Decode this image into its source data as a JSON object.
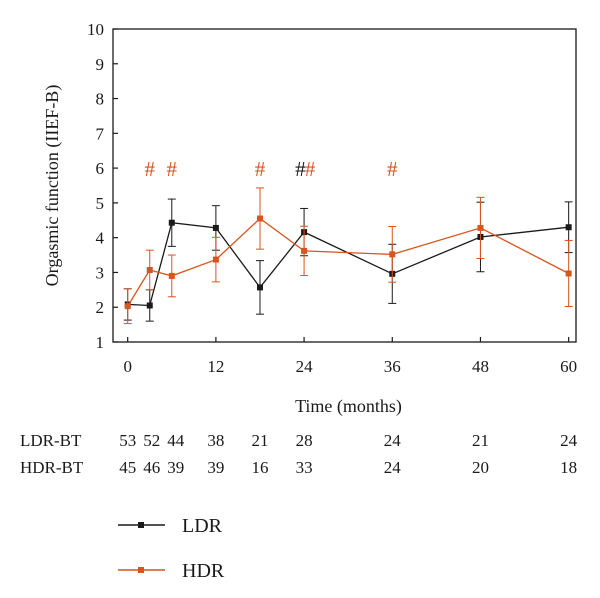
{
  "chart_data": {
    "type": "line",
    "xlabel": "Time (months)",
    "ylabel": "Orgasmic function (IIEF-B)",
    "xlim": [
      -2,
      61
    ],
    "ylim": [
      1,
      10
    ],
    "x_ticks": [
      0,
      12,
      24,
      36,
      48,
      60
    ],
    "y_ticks": [
      1,
      2,
      3,
      4,
      5,
      6,
      7,
      8,
      9,
      10
    ],
    "grid": false,
    "legend_position": "bottom-left",
    "series": [
      {
        "name": "LDR",
        "color": "#1a1a1a",
        "x": [
          0,
          3,
          6,
          12,
          18,
          24,
          36,
          48,
          60
        ],
        "y": [
          2.08,
          2.05,
          4.43,
          4.28,
          2.57,
          4.16,
          2.96,
          4.02,
          4.3
        ],
        "err": [
          0.45,
          0.45,
          0.68,
          0.64,
          0.77,
          0.68,
          0.85,
          1.0,
          0.73
        ]
      },
      {
        "name": "HDR",
        "color": "#d9541e",
        "x": [
          0,
          3,
          6,
          12,
          18,
          24,
          36,
          48,
          60
        ],
        "y": [
          2.03,
          3.07,
          2.9,
          3.37,
          4.55,
          3.62,
          3.52,
          4.28,
          2.97
        ],
        "err": [
          0.5,
          0.57,
          0.6,
          0.64,
          0.88,
          0.71,
          0.8,
          0.88,
          0.95
        ]
      }
    ],
    "annotations": [
      {
        "text": "#",
        "x": 3,
        "y": 6.0,
        "color": "#d9541e"
      },
      {
        "text": "#",
        "x": 6,
        "y": 6.0,
        "color": "#d9541e"
      },
      {
        "text": "#",
        "x": 18,
        "y": 6.0,
        "color": "#d9541e"
      },
      {
        "text": "#",
        "x": 23.5,
        "y": 6.0,
        "color": "#1a1a1a"
      },
      {
        "text": "#",
        "x": 24.8,
        "y": 6.0,
        "color": "#d9541e"
      },
      {
        "text": "#",
        "x": 36,
        "y": 6.0,
        "color": "#d9541e"
      }
    ],
    "at_risk_table": {
      "x": [
        0,
        3,
        6,
        12,
        18,
        24,
        36,
        48,
        60
      ],
      "rows": [
        {
          "label": "LDR-BT",
          "values": [
            "53",
            "52",
            "44",
            "38",
            "21",
            "28",
            "24",
            "21",
            "24"
          ]
        },
        {
          "label": "HDR-BT",
          "values": [
            "45",
            "46",
            "39",
            "39",
            "16",
            "33",
            "24",
            "20",
            "18"
          ]
        }
      ]
    }
  }
}
